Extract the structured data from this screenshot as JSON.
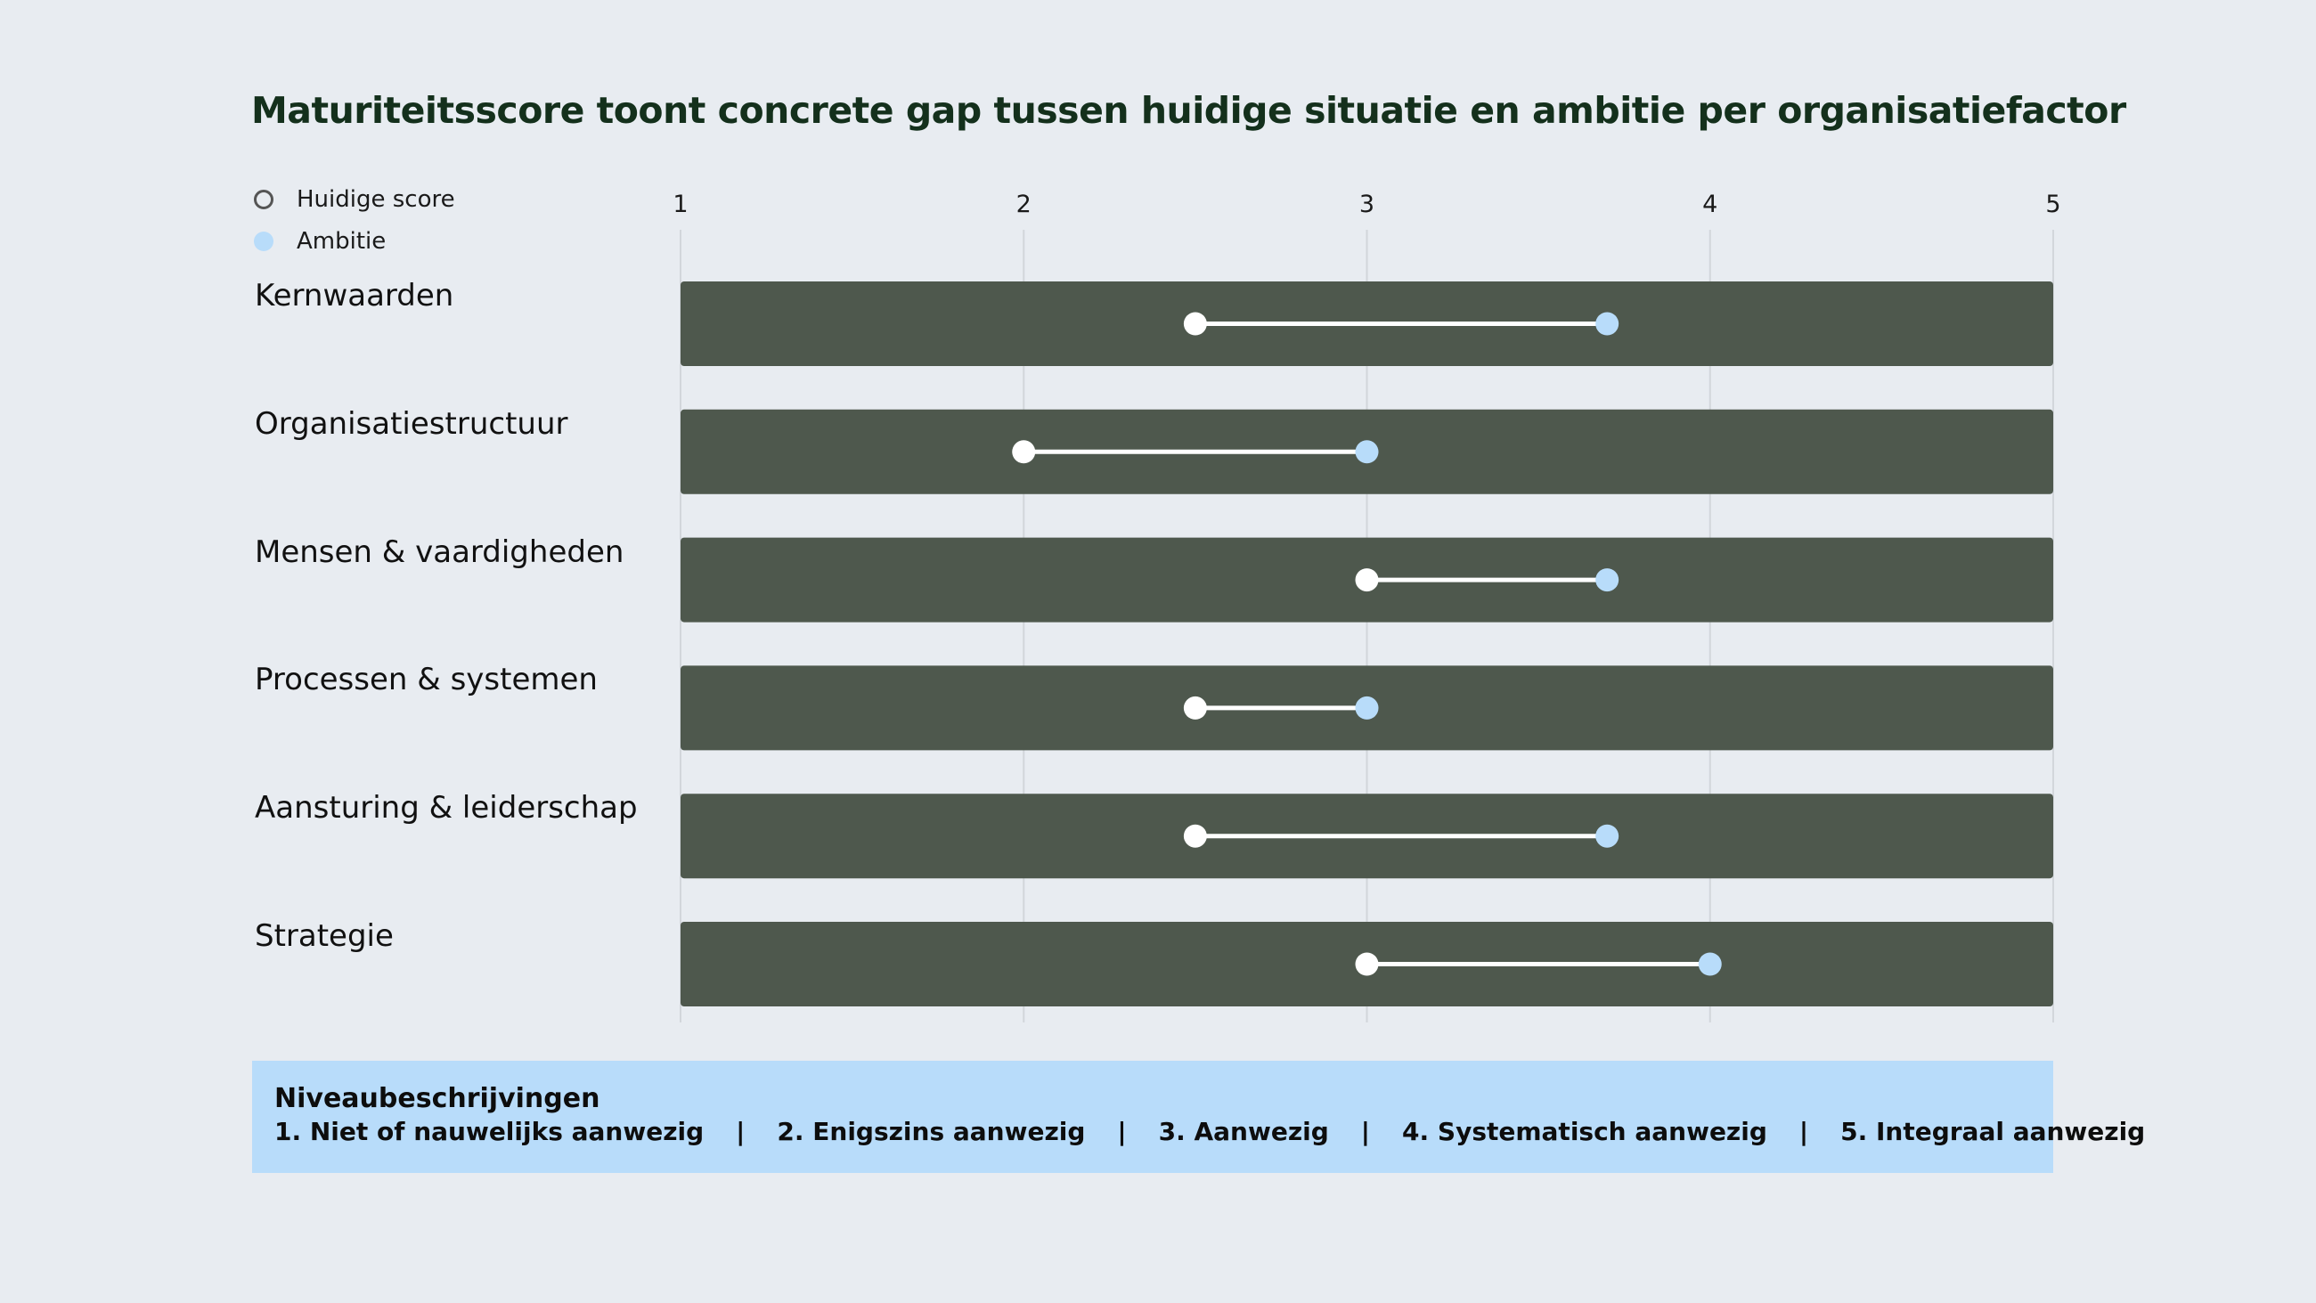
{
  "title": "Maturiteitsscore toont concrete gap tussen huidige situatie en ambitie per organisatiefactor",
  "legend": {
    "current_label": "Huidige score",
    "ambition_label": "Ambitie"
  },
  "colors": {
    "background": "#e8ecf1",
    "bar": "#4e584d",
    "current_marker": "#ffffff",
    "ambition_marker": "#b8dcfa",
    "connector": "#ffffff",
    "footer_bg": "#b8dcfa"
  },
  "chart_data": {
    "type": "dumbbell",
    "title": "Maturiteitsscore toont concrete gap tussen huidige situatie en ambitie per organisatiefactor",
    "x_ticks": [
      "1",
      "2",
      "3",
      "4",
      "5"
    ],
    "xlim": [
      1,
      5
    ],
    "grid": true,
    "legend_placement": "top-left",
    "categories": [
      "Kernwaarden",
      "Organisatiestructuur",
      "Mensen & vaardigheden",
      "Processen & systemen",
      "Aansturing & leiderschap",
      "Strategie"
    ],
    "series": [
      {
        "name": "Huidige score",
        "values": [
          2.5,
          2.0,
          3.0,
          2.5,
          2.5,
          3.0
        ]
      },
      {
        "name": "Ambitie",
        "values": [
          3.7,
          3.0,
          3.7,
          3.0,
          3.7,
          4.0
        ]
      }
    ]
  },
  "footer": {
    "title": "Niveaubeschrijvingen",
    "separator": "|",
    "levels": [
      "1. Niet of nauwelijks aanwezig",
      "2. Enigszins aanwezig",
      "3. Aanwezig",
      "4. Systematisch aanwezig",
      "5. Integraal aanwezig"
    ]
  }
}
